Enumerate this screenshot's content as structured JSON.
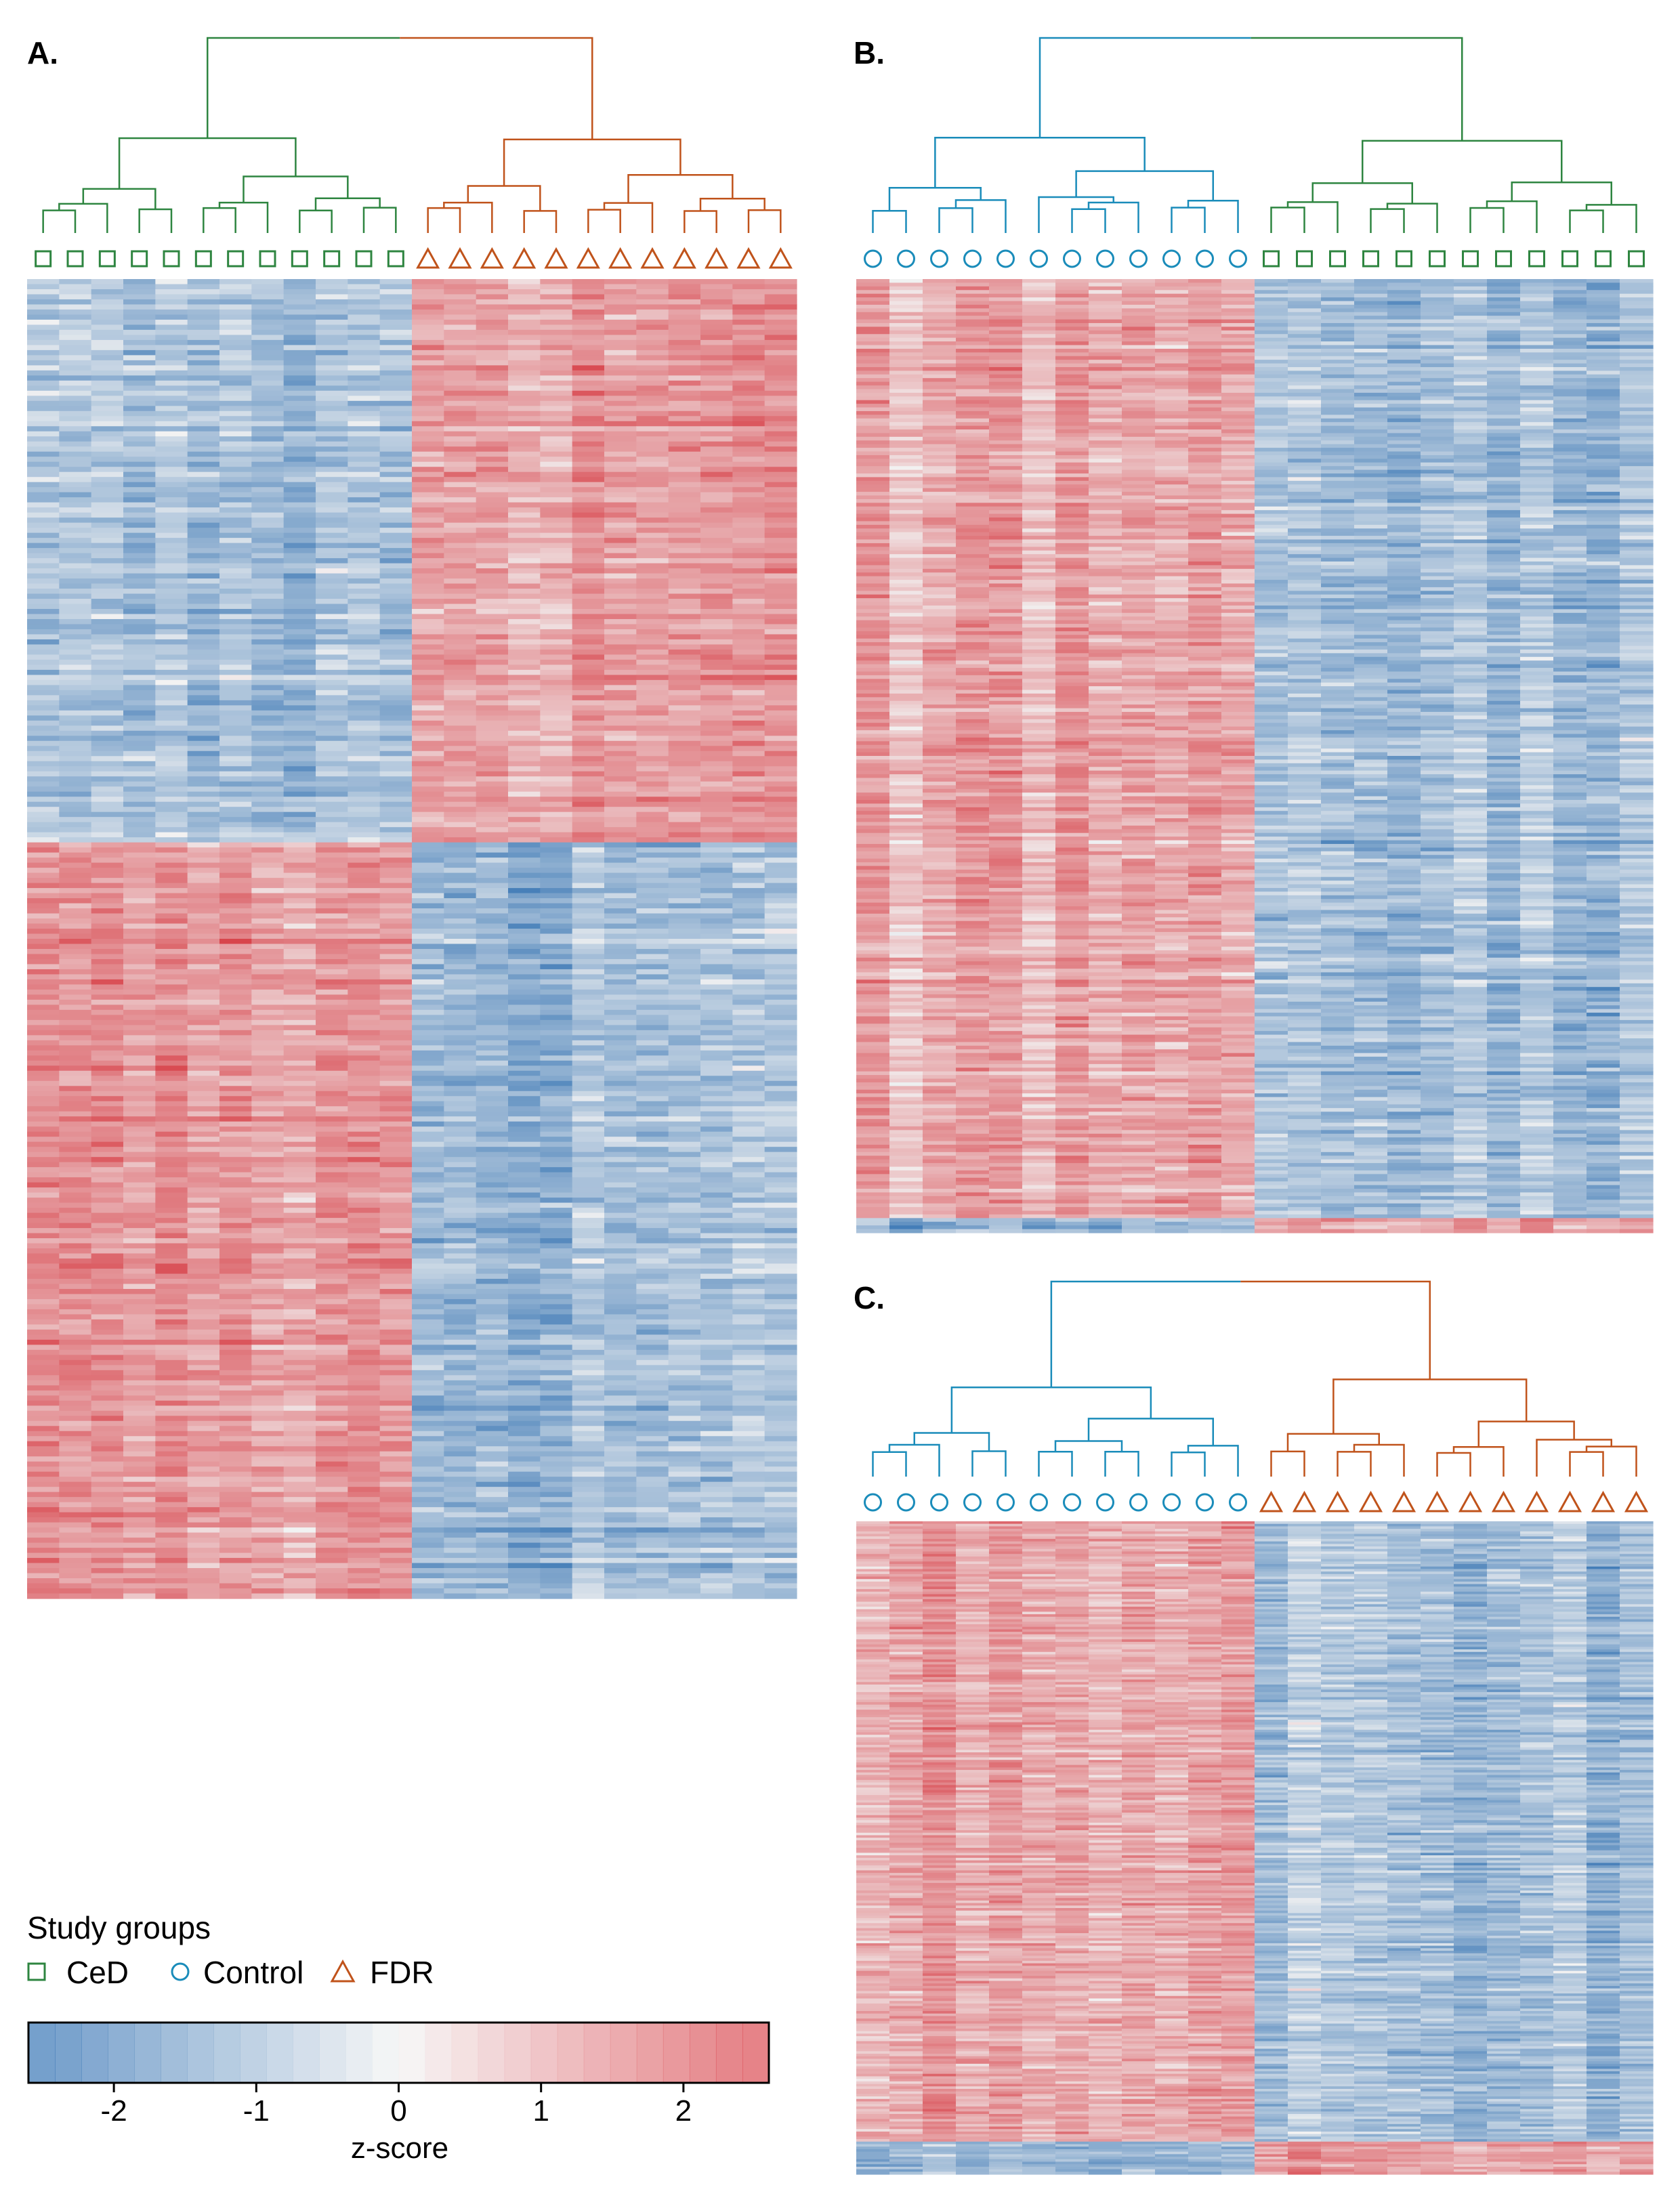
{
  "colors": {
    "CeD": "#2e8540",
    "Control": "#1a8cba",
    "FDR": "#c0531b",
    "heat_low": "#2166ac",
    "heat_mid": "#f2f2f2",
    "heat_high": "#d6373f"
  },
  "legend": {
    "title": "Study groups",
    "groups": [
      {
        "name": "CeD",
        "symbol": "square-icon"
      },
      {
        "name": "Control",
        "symbol": "circle-icon"
      },
      {
        "name": "FDR",
        "symbol": "triangle-icon"
      }
    ]
  },
  "colorbar": {
    "label": "z-score",
    "range": [
      -2.6,
      2.6
    ],
    "ticks": [
      "-2",
      "-1",
      "0",
      "1",
      "2"
    ],
    "tick_values": [
      -2,
      -1,
      0,
      1,
      2
    ]
  },
  "chart_data": [
    {
      "type": "heatmap",
      "panel": "A.",
      "columns": [
        {
          "group": "CeD",
          "count": 12
        },
        {
          "group": "FDR",
          "count": 12
        }
      ],
      "row_blocks": [
        {
          "fraction": 0.427,
          "z_by_group": {
            "CeD": -0.9,
            "FDR": 1.1
          },
          "note_z": "upper block"
        },
        {
          "fraction": 0.573,
          "z_by_group": {
            "CeD": 1.1,
            "FDR": -0.9
          }
        }
      ],
      "dendrogram_top_split": [
        "CeD",
        "FDR"
      ]
    },
    {
      "type": "heatmap",
      "panel": "B.",
      "columns": [
        {
          "group": "Control",
          "count": 12
        },
        {
          "group": "CeD",
          "count": 12
        }
      ],
      "row_blocks": [
        {
          "fraction": 0.985,
          "z_by_group": {
            "Control": 1.0,
            "CeD": -0.9
          }
        },
        {
          "fraction": 0.015,
          "z_by_group": {
            "Control": -1.0,
            "CeD": 1.0
          }
        }
      ],
      "dendrogram_top_split": [
        "Control",
        "CeD"
      ]
    },
    {
      "type": "heatmap",
      "panel": "C.",
      "columns": [
        {
          "group": "Control",
          "count": 12
        },
        {
          "group": "FDR",
          "count": 12
        }
      ],
      "row_blocks": [
        {
          "fraction": 0.95,
          "z_by_group": {
            "Control": 1.0,
            "FDR": -0.9
          }
        },
        {
          "fraction": 0.05,
          "z_by_group": {
            "Control": -1.0,
            "FDR": 1.0
          }
        }
      ],
      "dendrogram_top_split": [
        "Control",
        "FDR"
      ]
    }
  ]
}
